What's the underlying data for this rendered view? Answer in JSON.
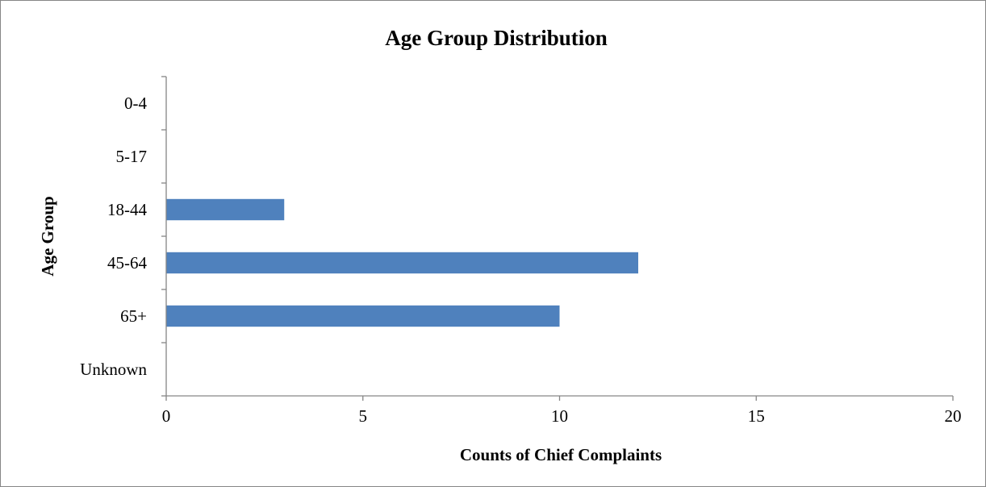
{
  "chart_data": {
    "type": "bar",
    "orientation": "horizontal",
    "title": "Age Group Distribution",
    "xlabel": "Counts of Chief Complaints",
    "ylabel": "Age Group",
    "categories": [
      "0-4",
      "5-17",
      "18-44",
      "45-64",
      "65+",
      "Unknown"
    ],
    "values": [
      0,
      0,
      3,
      12,
      10,
      0
    ],
    "xlim": [
      0,
      20
    ],
    "x_ticks": [
      0,
      5,
      10,
      15,
      20
    ],
    "grid": false,
    "legend": "none",
    "bar_color": "#4f81bd",
    "axis_color": "#868686"
  }
}
